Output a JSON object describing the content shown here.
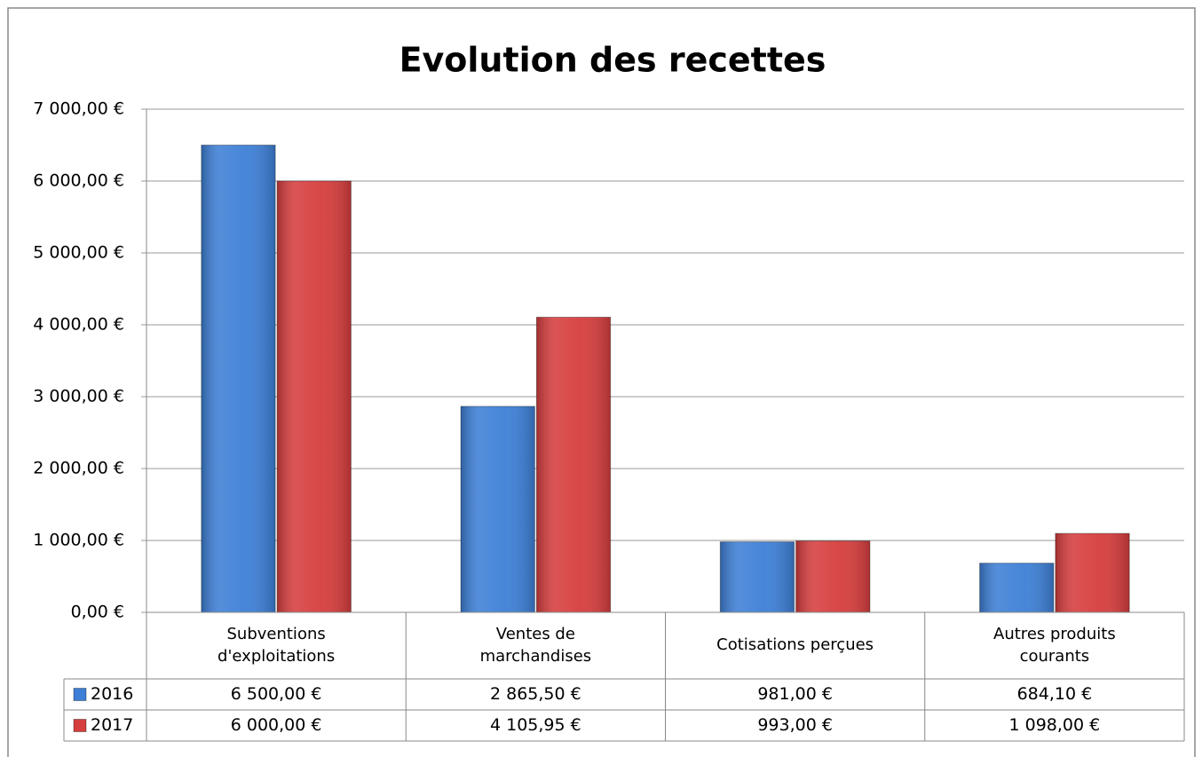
{
  "chart_data": {
    "type": "bar",
    "title": "Evolution des recettes",
    "categories": [
      "Subventions d'exploitations",
      "Ventes de marchandises",
      "Cotisations perçues",
      "Autres produits courants"
    ],
    "series": [
      {
        "name": "2016",
        "color": "#3d7fd6",
        "values": [
          6500,
          2865.5,
          981,
          684.1
        ],
        "value_labels": [
          "6 500,00 €",
          "2 865,50 €",
          "981,00 €",
          "684,10 €"
        ]
      },
      {
        "name": "2017",
        "color": "#d63d3d",
        "values": [
          6000,
          4105.95,
          993,
          1098
        ],
        "value_labels": [
          "6 000,00 €",
          "4 105,95 €",
          "993,00 €",
          "1 098,00 €"
        ]
      }
    ],
    "ylim": [
      0,
      7000
    ],
    "yticks": [
      {
        "value": 0,
        "label": "0,00 €"
      },
      {
        "value": 1000,
        "label": "1 000,00 €"
      },
      {
        "value": 2000,
        "label": "2 000,00 €"
      },
      {
        "value": 3000,
        "label": "3 000,00 €"
      },
      {
        "value": 4000,
        "label": "4 000,00 €"
      },
      {
        "value": 5000,
        "label": "5 000,00 €"
      },
      {
        "value": 6000,
        "label": "6 000,00 €"
      },
      {
        "value": 7000,
        "label": "7 000,00 €"
      }
    ],
    "grid": true
  }
}
